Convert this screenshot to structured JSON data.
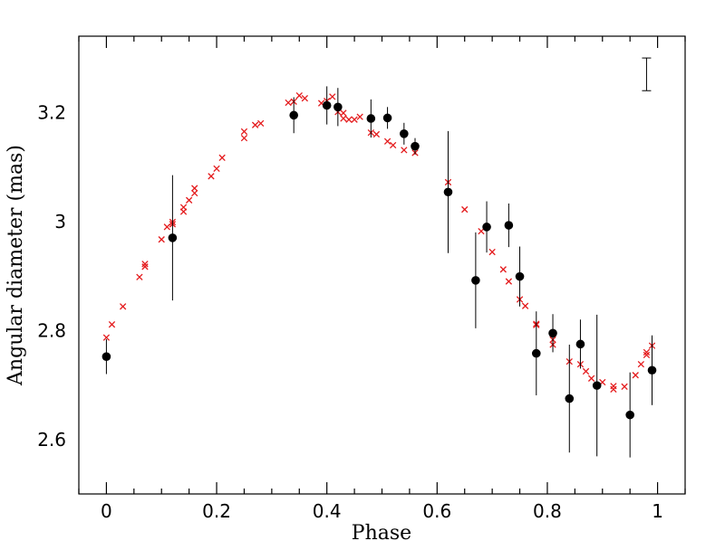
{
  "chart_data": {
    "type": "scatter",
    "title": "",
    "xlabel": "Phase",
    "ylabel": "Angular diameter (mas)",
    "xlim": [
      -0.05,
      1.05
    ],
    "ylim": [
      2.5,
      3.34
    ],
    "x_ticks": [
      0,
      0.2,
      0.4,
      0.6,
      0.8,
      1
    ],
    "x_tick_labels": [
      "0",
      "0.2",
      "0.4",
      "0.6",
      "0.8",
      "1"
    ],
    "y_ticks": [
      2.6,
      2.8,
      3,
      3.2
    ],
    "y_tick_labels": [
      "2.6",
      "2.8",
      "3",
      "3.2"
    ],
    "grid": false,
    "legend": "none",
    "colors": {
      "measurements": "#000000",
      "model": "#e41a1c"
    },
    "typical_error_bar": {
      "x": 0.98,
      "y_low": 3.24,
      "y_high": 3.3
    },
    "series": [
      {
        "marker": "filled-circle",
        "color": "#000000",
        "points": [
          {
            "x": 0.0,
            "y": 2.752,
            "err": 0.032
          },
          {
            "x": 0.12,
            "y": 2.97,
            "err": 0.115
          },
          {
            "x": 0.34,
            "y": 3.195,
            "err": 0.033
          },
          {
            "x": 0.4,
            "y": 3.213,
            "err": 0.035
          },
          {
            "x": 0.42,
            "y": 3.21,
            "err": 0.035
          },
          {
            "x": 0.48,
            "y": 3.189,
            "err": 0.035
          },
          {
            "x": 0.51,
            "y": 3.19,
            "err": 0.02
          },
          {
            "x": 0.54,
            "y": 3.161,
            "err": 0.02
          },
          {
            "x": 0.56,
            "y": 3.138,
            "err": 0.015
          },
          {
            "x": 0.62,
            "y": 3.054,
            "err": 0.112
          },
          {
            "x": 0.67,
            "y": 2.892,
            "err": 0.088
          },
          {
            "x": 0.69,
            "y": 2.99,
            "err": 0.047
          },
          {
            "x": 0.73,
            "y": 2.993,
            "err": 0.04
          },
          {
            "x": 0.75,
            "y": 2.899,
            "err": 0.055
          },
          {
            "x": 0.78,
            "y": 2.758,
            "err": 0.077
          },
          {
            "x": 0.81,
            "y": 2.795,
            "err": 0.035
          },
          {
            "x": 0.84,
            "y": 2.675,
            "err": 0.099
          },
          {
            "x": 0.86,
            "y": 2.775,
            "err": 0.045
          },
          {
            "x": 0.89,
            "y": 2.699,
            "err": 0.13
          },
          {
            "x": 0.95,
            "y": 2.645,
            "err": 0.078
          },
          {
            "x": 0.99,
            "y": 2.727,
            "err": 0.064
          }
        ]
      },
      {
        "marker": "cross",
        "color": "#e41a1c",
        "points": [
          {
            "x": 0.0,
            "y": 2.787
          },
          {
            "x": 0.01,
            "y": 2.811
          },
          {
            "x": 0.03,
            "y": 2.844
          },
          {
            "x": 0.06,
            "y": 2.898
          },
          {
            "x": 0.07,
            "y": 2.917
          },
          {
            "x": 0.07,
            "y": 2.922
          },
          {
            "x": 0.1,
            "y": 2.967
          },
          {
            "x": 0.11,
            "y": 2.99
          },
          {
            "x": 0.12,
            "y": 2.995
          },
          {
            "x": 0.12,
            "y": 2.999
          },
          {
            "x": 0.14,
            "y": 3.018
          },
          {
            "x": 0.14,
            "y": 3.026
          },
          {
            "x": 0.15,
            "y": 3.039
          },
          {
            "x": 0.16,
            "y": 3.052
          },
          {
            "x": 0.16,
            "y": 3.061
          },
          {
            "x": 0.19,
            "y": 3.083
          },
          {
            "x": 0.2,
            "y": 3.097
          },
          {
            "x": 0.21,
            "y": 3.117
          },
          {
            "x": 0.25,
            "y": 3.153
          },
          {
            "x": 0.25,
            "y": 3.165
          },
          {
            "x": 0.27,
            "y": 3.177
          },
          {
            "x": 0.28,
            "y": 3.18
          },
          {
            "x": 0.33,
            "y": 3.218
          },
          {
            "x": 0.34,
            "y": 3.22
          },
          {
            "x": 0.35,
            "y": 3.231
          },
          {
            "x": 0.36,
            "y": 3.226
          },
          {
            "x": 0.39,
            "y": 3.217
          },
          {
            "x": 0.4,
            "y": 3.221
          },
          {
            "x": 0.41,
            "y": 3.229
          },
          {
            "x": 0.42,
            "y": 3.201
          },
          {
            "x": 0.43,
            "y": 3.199
          },
          {
            "x": 0.43,
            "y": 3.189
          },
          {
            "x": 0.44,
            "y": 3.187
          },
          {
            "x": 0.45,
            "y": 3.187
          },
          {
            "x": 0.46,
            "y": 3.192
          },
          {
            "x": 0.48,
            "y": 3.163
          },
          {
            "x": 0.49,
            "y": 3.16
          },
          {
            "x": 0.51,
            "y": 3.147
          },
          {
            "x": 0.52,
            "y": 3.14
          },
          {
            "x": 0.54,
            "y": 3.131
          },
          {
            "x": 0.56,
            "y": 3.126
          },
          {
            "x": 0.62,
            "y": 3.072
          },
          {
            "x": 0.65,
            "y": 3.022
          },
          {
            "x": 0.68,
            "y": 2.982
          },
          {
            "x": 0.7,
            "y": 2.944
          },
          {
            "x": 0.72,
            "y": 2.912
          },
          {
            "x": 0.73,
            "y": 2.89
          },
          {
            "x": 0.75,
            "y": 2.857
          },
          {
            "x": 0.76,
            "y": 2.845
          },
          {
            "x": 0.78,
            "y": 2.812
          },
          {
            "x": 0.78,
            "y": 2.81
          },
          {
            "x": 0.81,
            "y": 2.783
          },
          {
            "x": 0.81,
            "y": 2.774
          },
          {
            "x": 0.84,
            "y": 2.743
          },
          {
            "x": 0.86,
            "y": 2.738
          },
          {
            "x": 0.87,
            "y": 2.725
          },
          {
            "x": 0.88,
            "y": 2.712
          },
          {
            "x": 0.9,
            "y": 2.705
          },
          {
            "x": 0.92,
            "y": 2.698
          },
          {
            "x": 0.92,
            "y": 2.692
          },
          {
            "x": 0.94,
            "y": 2.697
          },
          {
            "x": 0.96,
            "y": 2.718
          },
          {
            "x": 0.97,
            "y": 2.738
          },
          {
            "x": 0.98,
            "y": 2.755
          },
          {
            "x": 0.98,
            "y": 2.76
          },
          {
            "x": 0.99,
            "y": 2.772
          }
        ]
      }
    ]
  }
}
